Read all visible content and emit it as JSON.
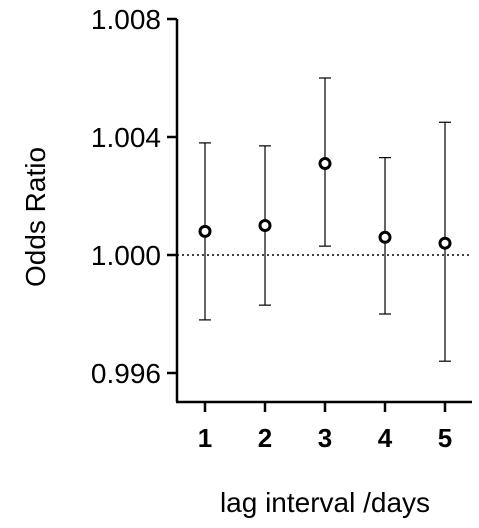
{
  "chart_data": {
    "type": "scatter",
    "xlabel": "lag interval /days",
    "ylabel": "Odds Ratio",
    "ylim": [
      0.995,
      1.008
    ],
    "yticks": [
      "0.996",
      "1.000",
      "1.004",
      "1.008"
    ],
    "categories": [
      "1",
      "2",
      "3",
      "4",
      "5"
    ],
    "reference_line": 1.0,
    "grid": false,
    "series": [
      {
        "values": [
          1.0008,
          1.001,
          1.0031,
          1.0006,
          1.0004
        ],
        "lower": [
          0.9978,
          0.9983,
          1.0003,
          0.998,
          0.9964
        ],
        "upper": [
          1.0038,
          1.0037,
          1.006,
          1.0033,
          1.0045
        ]
      }
    ]
  }
}
